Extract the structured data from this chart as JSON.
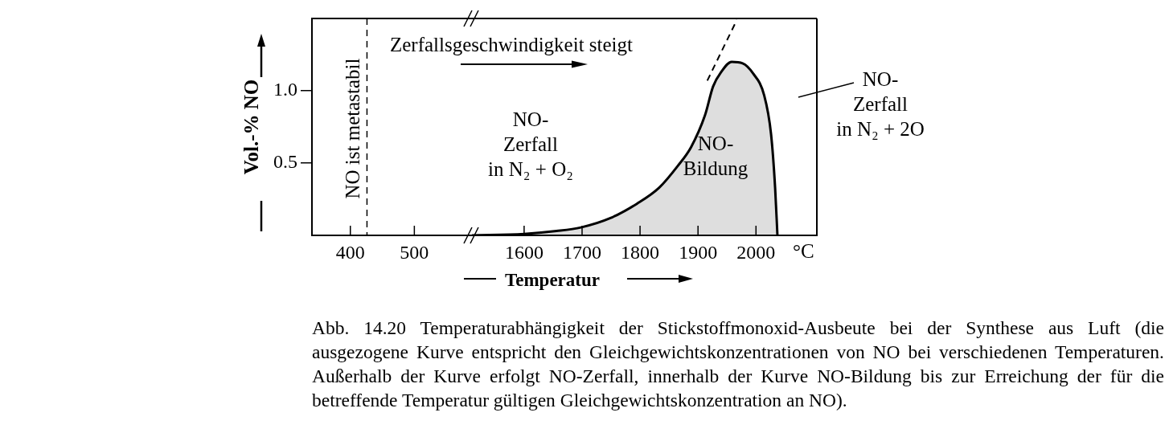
{
  "chart_data": [
    {
      "type": "line",
      "ylabel": "Vol.-% NO",
      "xlim": [
        340,
        590
      ],
      "xticks": [
        400,
        500
      ],
      "ylim": [
        0,
        1.5
      ],
      "yticks": [
        {
          "value": 0.5,
          "label": "0.5"
        },
        {
          "value": 1,
          "label": "1.0"
        }
      ],
      "ref_lines": [
        {
          "axis": "x",
          "value": 426,
          "label": "NO ist metastabil",
          "line_style": "dashed"
        }
      ]
    },
    {
      "type": "area",
      "xlabel": "Temperatur",
      "xlim": [
        1510,
        2105
      ],
      "xticks": [
        1600,
        1700,
        1800,
        1900,
        2000
      ],
      "ylim": [
        0,
        1.5
      ],
      "tick_labels": "x",
      "series": [
        {
          "type": "area",
          "color": "#000000",
          "x": [
            1510,
            1600,
            1656,
            1698,
            1749,
            1795,
            1833,
            1865,
            1888,
            1912,
            1926,
            1940,
            1958,
            1977,
            1995,
            2014,
            2026,
            2033,
            2037
          ],
          "values": [
            0,
            0.01,
            0.03,
            0.055,
            0.12,
            0.22,
            0.33,
            0.48,
            0.61,
            0.83,
            1.03,
            1.13,
            1.2,
            1.19,
            1.12,
            0.97,
            0.7,
            0.33,
            0
          ]
        },
        {
          "type": "line",
          "color": "#000000",
          "line_style": "dashed",
          "x": [
            1916,
            1967
          ],
          "values": [
            1.07,
            1.49
          ]
        }
      ],
      "annotations": [
        "Zerfallsgeschwindigkeit steigt",
        "NO-\nZerfall\nin N₂ + O₂",
        "NO-\nBildung",
        "NO-\nZerfall\nin N₂ + 2O",
        "°C",
        "Abb. 14.20  Temperaturabhängigkeit der Stickstoffmonoxid-Ausbeute bei der Synthese aus Luft (die ausgezogene Kurve entspricht den Gleichgewichtskonzentrationen von NO bei verschiedenen Temperaturen. Außerhalb der Kurve erfolgt NO-Zerfall, innerhalb der Kurve NO-Bildung bis zur Erreichung der für die betreffende Temperatur gültigen Gleichgewichtskonzentration an NO)."
      ]
    }
  ]
}
